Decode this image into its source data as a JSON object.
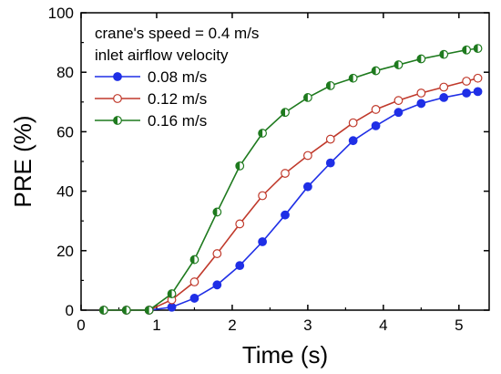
{
  "chart_data": {
    "type": "line",
    "xlabel": "Time (s)",
    "ylabel": "PRE (%)",
    "xlim": [
      0,
      5.4
    ],
    "ylim": [
      0,
      100
    ],
    "xticks": [
      0,
      1,
      2,
      3,
      4,
      5
    ],
    "yticks": [
      0,
      20,
      40,
      60,
      80,
      100
    ],
    "legend": {
      "position": "top-left",
      "lines": [
        "crane's speed = 0.4 m/s",
        "inlet airflow velocity"
      ]
    },
    "x": [
      0.3,
      0.6,
      0.9,
      1.2,
      1.5,
      1.8,
      2.1,
      2.4,
      2.7,
      3.0,
      3.3,
      3.6,
      3.9,
      4.2,
      4.5,
      4.8,
      5.1,
      5.25
    ],
    "series": [
      {
        "name": "0.08 m/s",
        "color": "#1f2fe6",
        "marker": "filled-circle",
        "values": [
          0,
          0,
          0,
          1,
          4,
          8.5,
          15,
          23,
          32,
          41.5,
          49.5,
          57,
          62,
          66.5,
          69.5,
          71.5,
          73,
          73.5
        ]
      },
      {
        "name": "0.12 m/s",
        "color": "#c0392b",
        "marker": "open-circle",
        "values": [
          0,
          0,
          0,
          3.5,
          9.5,
          19,
          29,
          38.5,
          46,
          52,
          57.5,
          63,
          67.5,
          70.5,
          73,
          75,
          77,
          78
        ]
      },
      {
        "name": "0.16 m/s",
        "color": "#1e7a1e",
        "marker": "half-filled-circle",
        "values": [
          0,
          0,
          0,
          5.5,
          17,
          33,
          48.5,
          59.5,
          66.5,
          71.5,
          75.5,
          78,
          80.5,
          82.5,
          84.5,
          86,
          87.5,
          88
        ]
      }
    ]
  }
}
